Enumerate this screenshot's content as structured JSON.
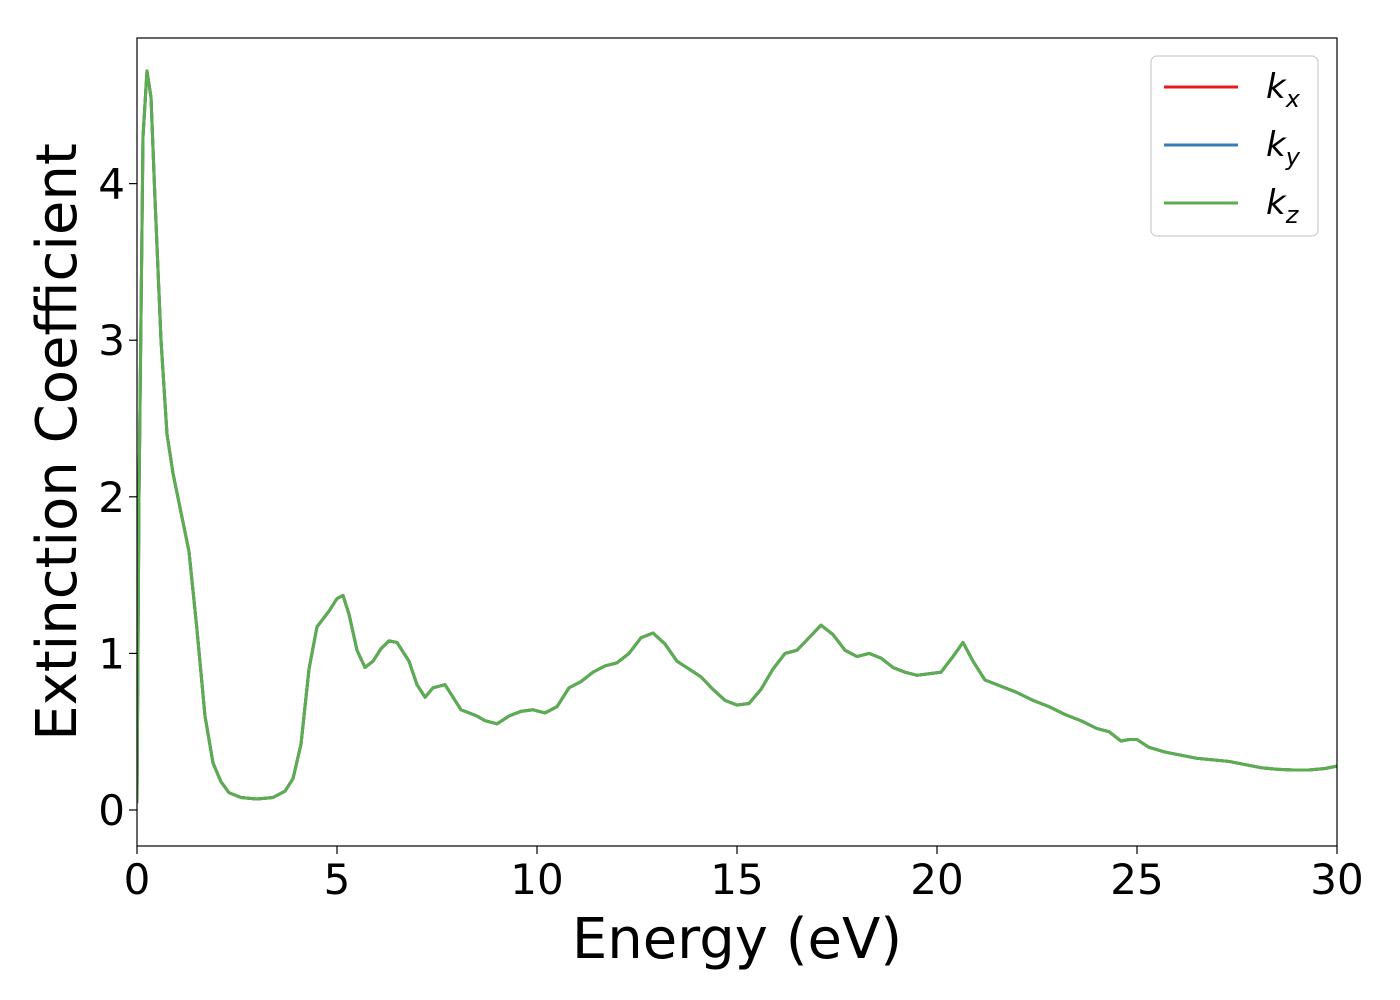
{
  "chart_data": {
    "type": "line",
    "xlabel": "Energy (eV)",
    "ylabel": "Extinction Coefficient",
    "xlim": [
      0,
      30
    ],
    "ylim": [
      -0.23,
      4.93
    ],
    "xticks": [
      0,
      5,
      10,
      15,
      20,
      25,
      30
    ],
    "xtick_labels": [
      "0",
      "5",
      "10",
      "15",
      "20",
      "25",
      "30"
    ],
    "yticks": [
      0,
      1,
      2,
      3,
      4
    ],
    "ytick_labels": [
      "0",
      "1",
      "2",
      "3",
      "4"
    ],
    "grid": false,
    "legend_position": "top-right",
    "x": [
      0,
      0.05,
      0.15,
      0.25,
      0.35,
      0.45,
      0.6,
      0.75,
      0.9,
      1.1,
      1.3,
      1.5,
      1.7,
      1.9,
      2.1,
      2.3,
      2.6,
      3.0,
      3.4,
      3.7,
      3.9,
      4.1,
      4.3,
      4.5,
      4.8,
      5.0,
      5.15,
      5.3,
      5.5,
      5.7,
      5.9,
      6.1,
      6.3,
      6.5,
      6.8,
      7.0,
      7.2,
      7.4,
      7.7,
      7.9,
      8.1,
      8.3,
      8.5,
      8.7,
      9.0,
      9.3,
      9.6,
      9.9,
      10.2,
      10.5,
      10.8,
      11.1,
      11.4,
      11.7,
      12.0,
      12.3,
      12.6,
      12.9,
      13.2,
      13.5,
      13.8,
      14.1,
      14.4,
      14.7,
      15.0,
      15.3,
      15.6,
      15.9,
      16.2,
      16.5,
      16.8,
      17.1,
      17.4,
      17.7,
      18.0,
      18.3,
      18.6,
      18.9,
      19.2,
      19.5,
      19.8,
      20.1,
      20.4,
      20.65,
      20.9,
      21.2,
      21.6,
      22.0,
      22.4,
      22.8,
      23.2,
      23.6,
      24.0,
      24.3,
      24.6,
      24.8,
      25.0,
      25.3,
      25.7,
      26.1,
      26.5,
      26.9,
      27.3,
      27.7,
      28.1,
      28.5,
      28.9,
      29.3,
      29.7,
      30.0
    ],
    "series": [
      {
        "name": "k_x",
        "label_base": "k",
        "label_sub": "x",
        "color": "#e41a1c",
        "values": [
          0.05,
          2.0,
          4.3,
          4.72,
          4.55,
          3.9,
          3.0,
          2.4,
          2.15,
          1.9,
          1.65,
          1.15,
          0.6,
          0.3,
          0.18,
          0.11,
          0.08,
          0.07,
          0.08,
          0.12,
          0.2,
          0.42,
          0.9,
          1.17,
          1.27,
          1.35,
          1.37,
          1.25,
          1.02,
          0.91,
          0.95,
          1.03,
          1.08,
          1.07,
          0.95,
          0.8,
          0.72,
          0.78,
          0.8,
          0.72,
          0.64,
          0.62,
          0.6,
          0.57,
          0.55,
          0.6,
          0.63,
          0.64,
          0.62,
          0.66,
          0.78,
          0.82,
          0.88,
          0.92,
          0.94,
          1.0,
          1.1,
          1.13,
          1.06,
          0.95,
          0.9,
          0.85,
          0.77,
          0.7,
          0.67,
          0.68,
          0.77,
          0.9,
          1.0,
          1.02,
          1.1,
          1.18,
          1.12,
          1.02,
          0.98,
          1.0,
          0.97,
          0.91,
          0.88,
          0.86,
          0.87,
          0.88,
          0.98,
          1.07,
          0.95,
          0.83,
          0.79,
          0.75,
          0.7,
          0.66,
          0.61,
          0.57,
          0.52,
          0.5,
          0.44,
          0.45,
          0.45,
          0.4,
          0.37,
          0.35,
          0.33,
          0.32,
          0.31,
          0.29,
          0.27,
          0.26,
          0.255,
          0.255,
          0.265,
          0.28
        ]
      },
      {
        "name": "k_y",
        "label_base": "k",
        "label_sub": "y",
        "color": "#377eb8",
        "values": [
          0.05,
          2.0,
          4.3,
          4.72,
          4.55,
          3.9,
          3.0,
          2.4,
          2.15,
          1.9,
          1.65,
          1.15,
          0.6,
          0.3,
          0.18,
          0.11,
          0.08,
          0.07,
          0.08,
          0.12,
          0.2,
          0.42,
          0.9,
          1.17,
          1.27,
          1.35,
          1.37,
          1.25,
          1.02,
          0.91,
          0.95,
          1.03,
          1.08,
          1.07,
          0.95,
          0.8,
          0.72,
          0.78,
          0.8,
          0.72,
          0.64,
          0.62,
          0.6,
          0.57,
          0.55,
          0.6,
          0.63,
          0.64,
          0.62,
          0.66,
          0.78,
          0.82,
          0.88,
          0.92,
          0.94,
          1.0,
          1.1,
          1.13,
          1.06,
          0.95,
          0.9,
          0.85,
          0.77,
          0.7,
          0.67,
          0.68,
          0.77,
          0.9,
          1.0,
          1.02,
          1.1,
          1.18,
          1.12,
          1.02,
          0.98,
          1.0,
          0.97,
          0.91,
          0.88,
          0.86,
          0.87,
          0.88,
          0.98,
          1.07,
          0.95,
          0.83,
          0.79,
          0.75,
          0.7,
          0.66,
          0.61,
          0.57,
          0.52,
          0.5,
          0.44,
          0.45,
          0.45,
          0.4,
          0.37,
          0.35,
          0.33,
          0.32,
          0.31,
          0.29,
          0.27,
          0.26,
          0.255,
          0.255,
          0.265,
          0.28
        ]
      },
      {
        "name": "k_z",
        "label_base": "k",
        "label_sub": "z",
        "color": "#5aae4f",
        "values": [
          0.05,
          2.0,
          4.3,
          4.72,
          4.55,
          3.9,
          3.0,
          2.4,
          2.15,
          1.9,
          1.65,
          1.15,
          0.6,
          0.3,
          0.18,
          0.11,
          0.08,
          0.07,
          0.08,
          0.12,
          0.2,
          0.42,
          0.9,
          1.17,
          1.27,
          1.35,
          1.37,
          1.25,
          1.02,
          0.91,
          0.95,
          1.03,
          1.08,
          1.07,
          0.95,
          0.8,
          0.72,
          0.78,
          0.8,
          0.72,
          0.64,
          0.62,
          0.6,
          0.57,
          0.55,
          0.6,
          0.63,
          0.64,
          0.62,
          0.66,
          0.78,
          0.82,
          0.88,
          0.92,
          0.94,
          1.0,
          1.1,
          1.13,
          1.06,
          0.95,
          0.9,
          0.85,
          0.77,
          0.7,
          0.67,
          0.68,
          0.77,
          0.9,
          1.0,
          1.02,
          1.1,
          1.18,
          1.12,
          1.02,
          0.98,
          1.0,
          0.97,
          0.91,
          0.88,
          0.86,
          0.87,
          0.88,
          0.98,
          1.07,
          0.95,
          0.83,
          0.79,
          0.75,
          0.7,
          0.66,
          0.61,
          0.57,
          0.52,
          0.5,
          0.44,
          0.45,
          0.45,
          0.4,
          0.37,
          0.35,
          0.33,
          0.32,
          0.31,
          0.29,
          0.27,
          0.26,
          0.255,
          0.255,
          0.265,
          0.28
        ]
      }
    ]
  }
}
